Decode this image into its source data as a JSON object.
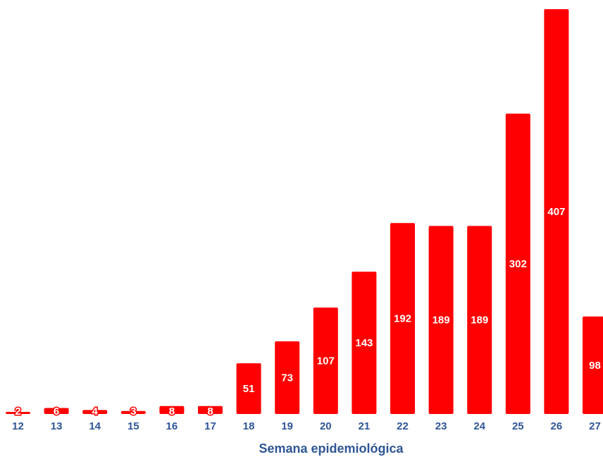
{
  "chart_data": {
    "type": "bar",
    "categories": [
      "12",
      "13",
      "14",
      "15",
      "16",
      "17",
      "18",
      "19",
      "20",
      "21",
      "22",
      "23",
      "24",
      "25",
      "26",
      "27"
    ],
    "values": [
      2,
      6,
      4,
      3,
      8,
      8,
      51,
      73,
      107,
      143,
      192,
      189,
      189,
      302,
      407,
      98
    ],
    "title": "",
    "xlabel": "Semana epidemiológica",
    "ylabel": "",
    "ylim": [
      0,
      407
    ],
    "grid": false,
    "legend": "none",
    "colors": {
      "bar": "#ff0000",
      "value_label": "#ffffff",
      "axis_text": "#2e5597"
    }
  }
}
